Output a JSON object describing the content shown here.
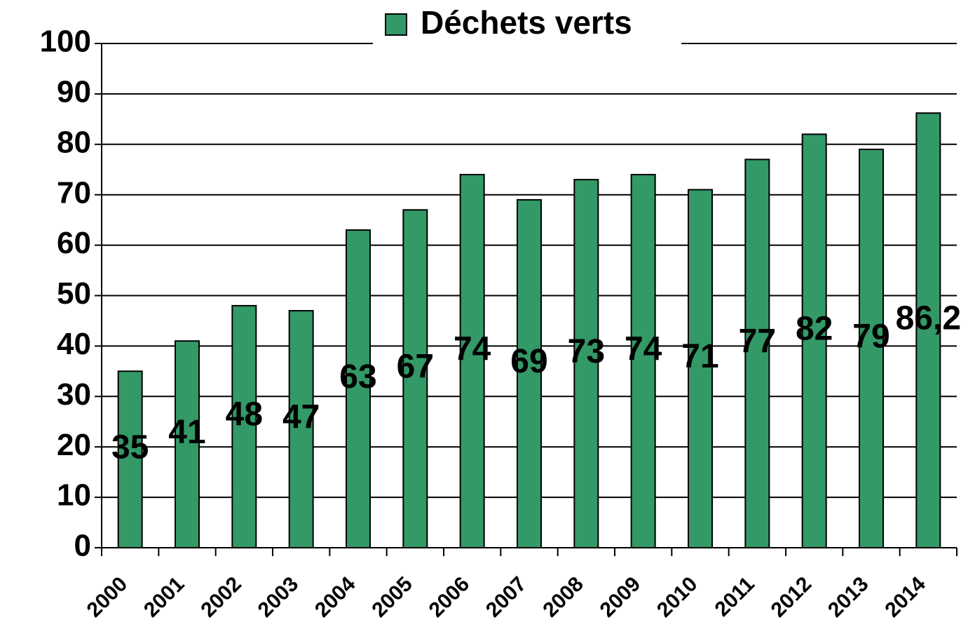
{
  "chart_data": {
    "type": "bar",
    "categories": [
      "2000",
      "2001",
      "2002",
      "2003",
      "2004",
      "2005",
      "2006",
      "2007",
      "2008",
      "2009",
      "2010",
      "2011",
      "2012",
      "2013",
      "2014"
    ],
    "series": [
      {
        "name": "Déchets verts",
        "color": "#339966",
        "values": [
          35,
          41,
          48,
          47,
          63,
          67,
          74,
          69,
          73,
          74,
          71,
          77,
          82,
          79,
          86.2
        ],
        "value_labels": [
          "35",
          "41",
          "48",
          "47",
          "63",
          "67",
          "74",
          "69",
          "73",
          "74",
          "71",
          "77",
          "82",
          "79",
          "86,2"
        ]
      }
    ],
    "ylim": [
      0,
      100
    ],
    "yticks": [
      0,
      10,
      20,
      30,
      40,
      50,
      60,
      70,
      80,
      90,
      100
    ],
    "grid": true,
    "legend": "top"
  }
}
